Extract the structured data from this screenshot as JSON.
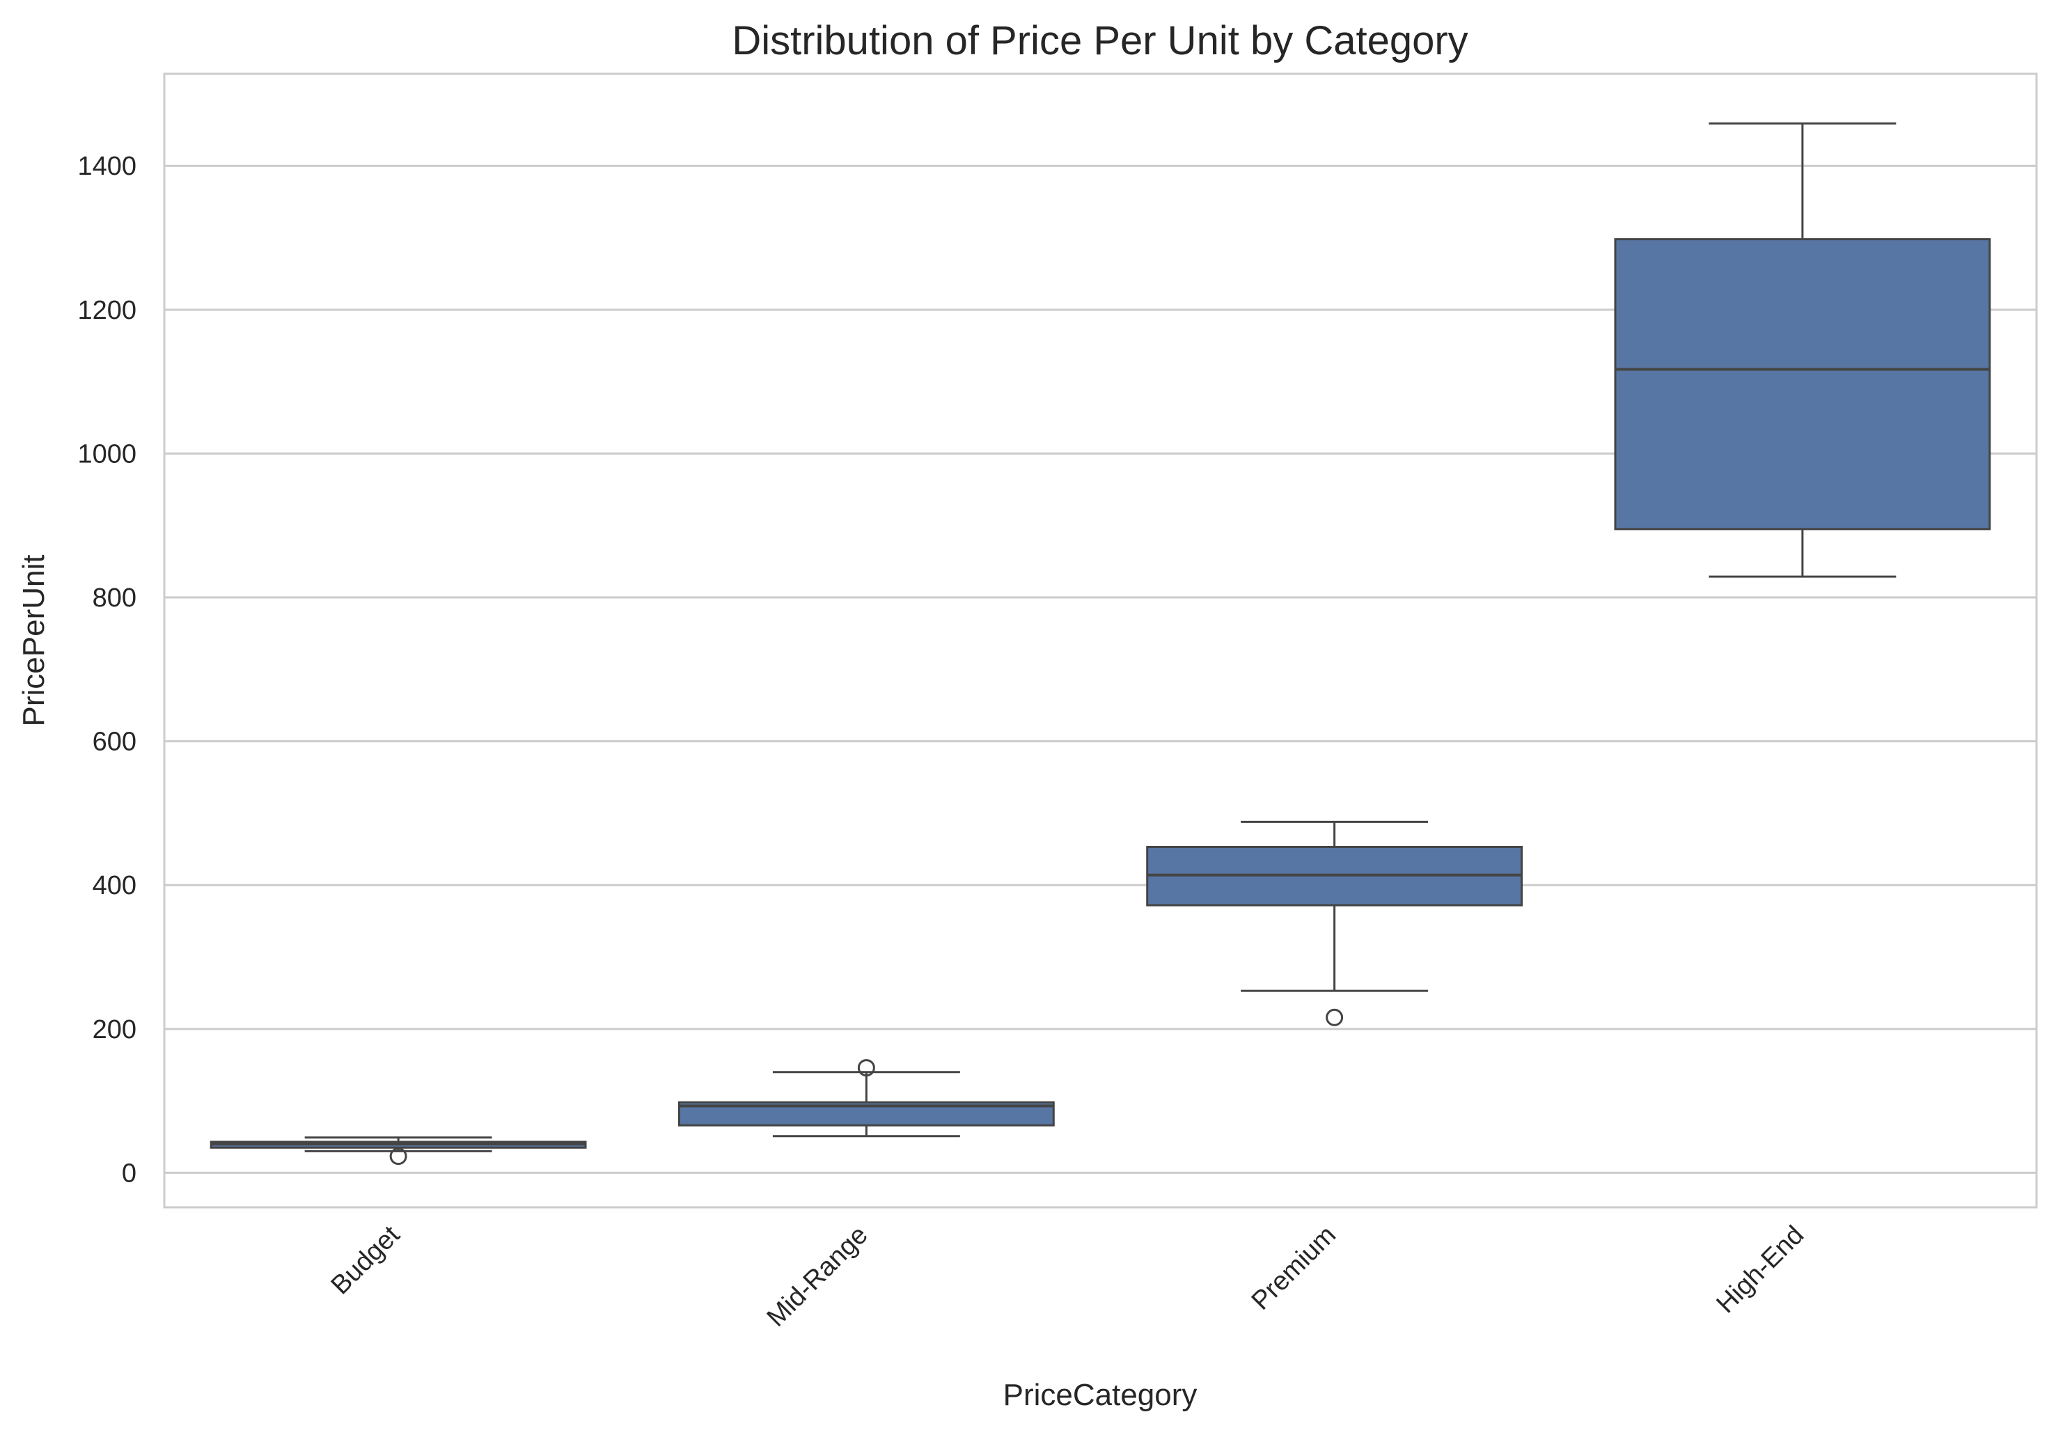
{
  "colors": {
    "box_fill": "#5876a4",
    "box_edge": "#444444",
    "grid": "#cccccc",
    "spine": "#cccccc",
    "text": "#262626",
    "background": "#ffffff"
  },
  "chart_data": {
    "type": "box",
    "title": "Distribution of Price Per Unit by Category",
    "xlabel": "PriceCategory",
    "ylabel": "PricePerUnit",
    "ylim": [
      -48,
      1528
    ],
    "yticks": [
      0,
      200,
      400,
      600,
      800,
      1000,
      1200,
      1400
    ],
    "categories": [
      "Budget",
      "Mid-Range",
      "Premium",
      "High-End"
    ],
    "grid": "horizontal",
    "series": [
      {
        "category": "Budget",
        "whisker_low": 30,
        "q1": 35,
        "median": 40,
        "q3": 43,
        "whisker_high": 49,
        "outliers": [
          23
        ]
      },
      {
        "category": "Mid-Range",
        "whisker_low": 51,
        "q1": 66,
        "median": 93,
        "q3": 98,
        "whisker_high": 140,
        "outliers": [
          146
        ]
      },
      {
        "category": "Premium",
        "whisker_low": 253,
        "q1": 372,
        "median": 414,
        "q3": 453,
        "whisker_high": 488,
        "outliers": [
          216
        ]
      },
      {
        "category": "High-End",
        "whisker_low": 829,
        "q1": 895,
        "median": 1117,
        "q3": 1298,
        "whisker_high": 1459,
        "outliers": []
      }
    ]
  }
}
